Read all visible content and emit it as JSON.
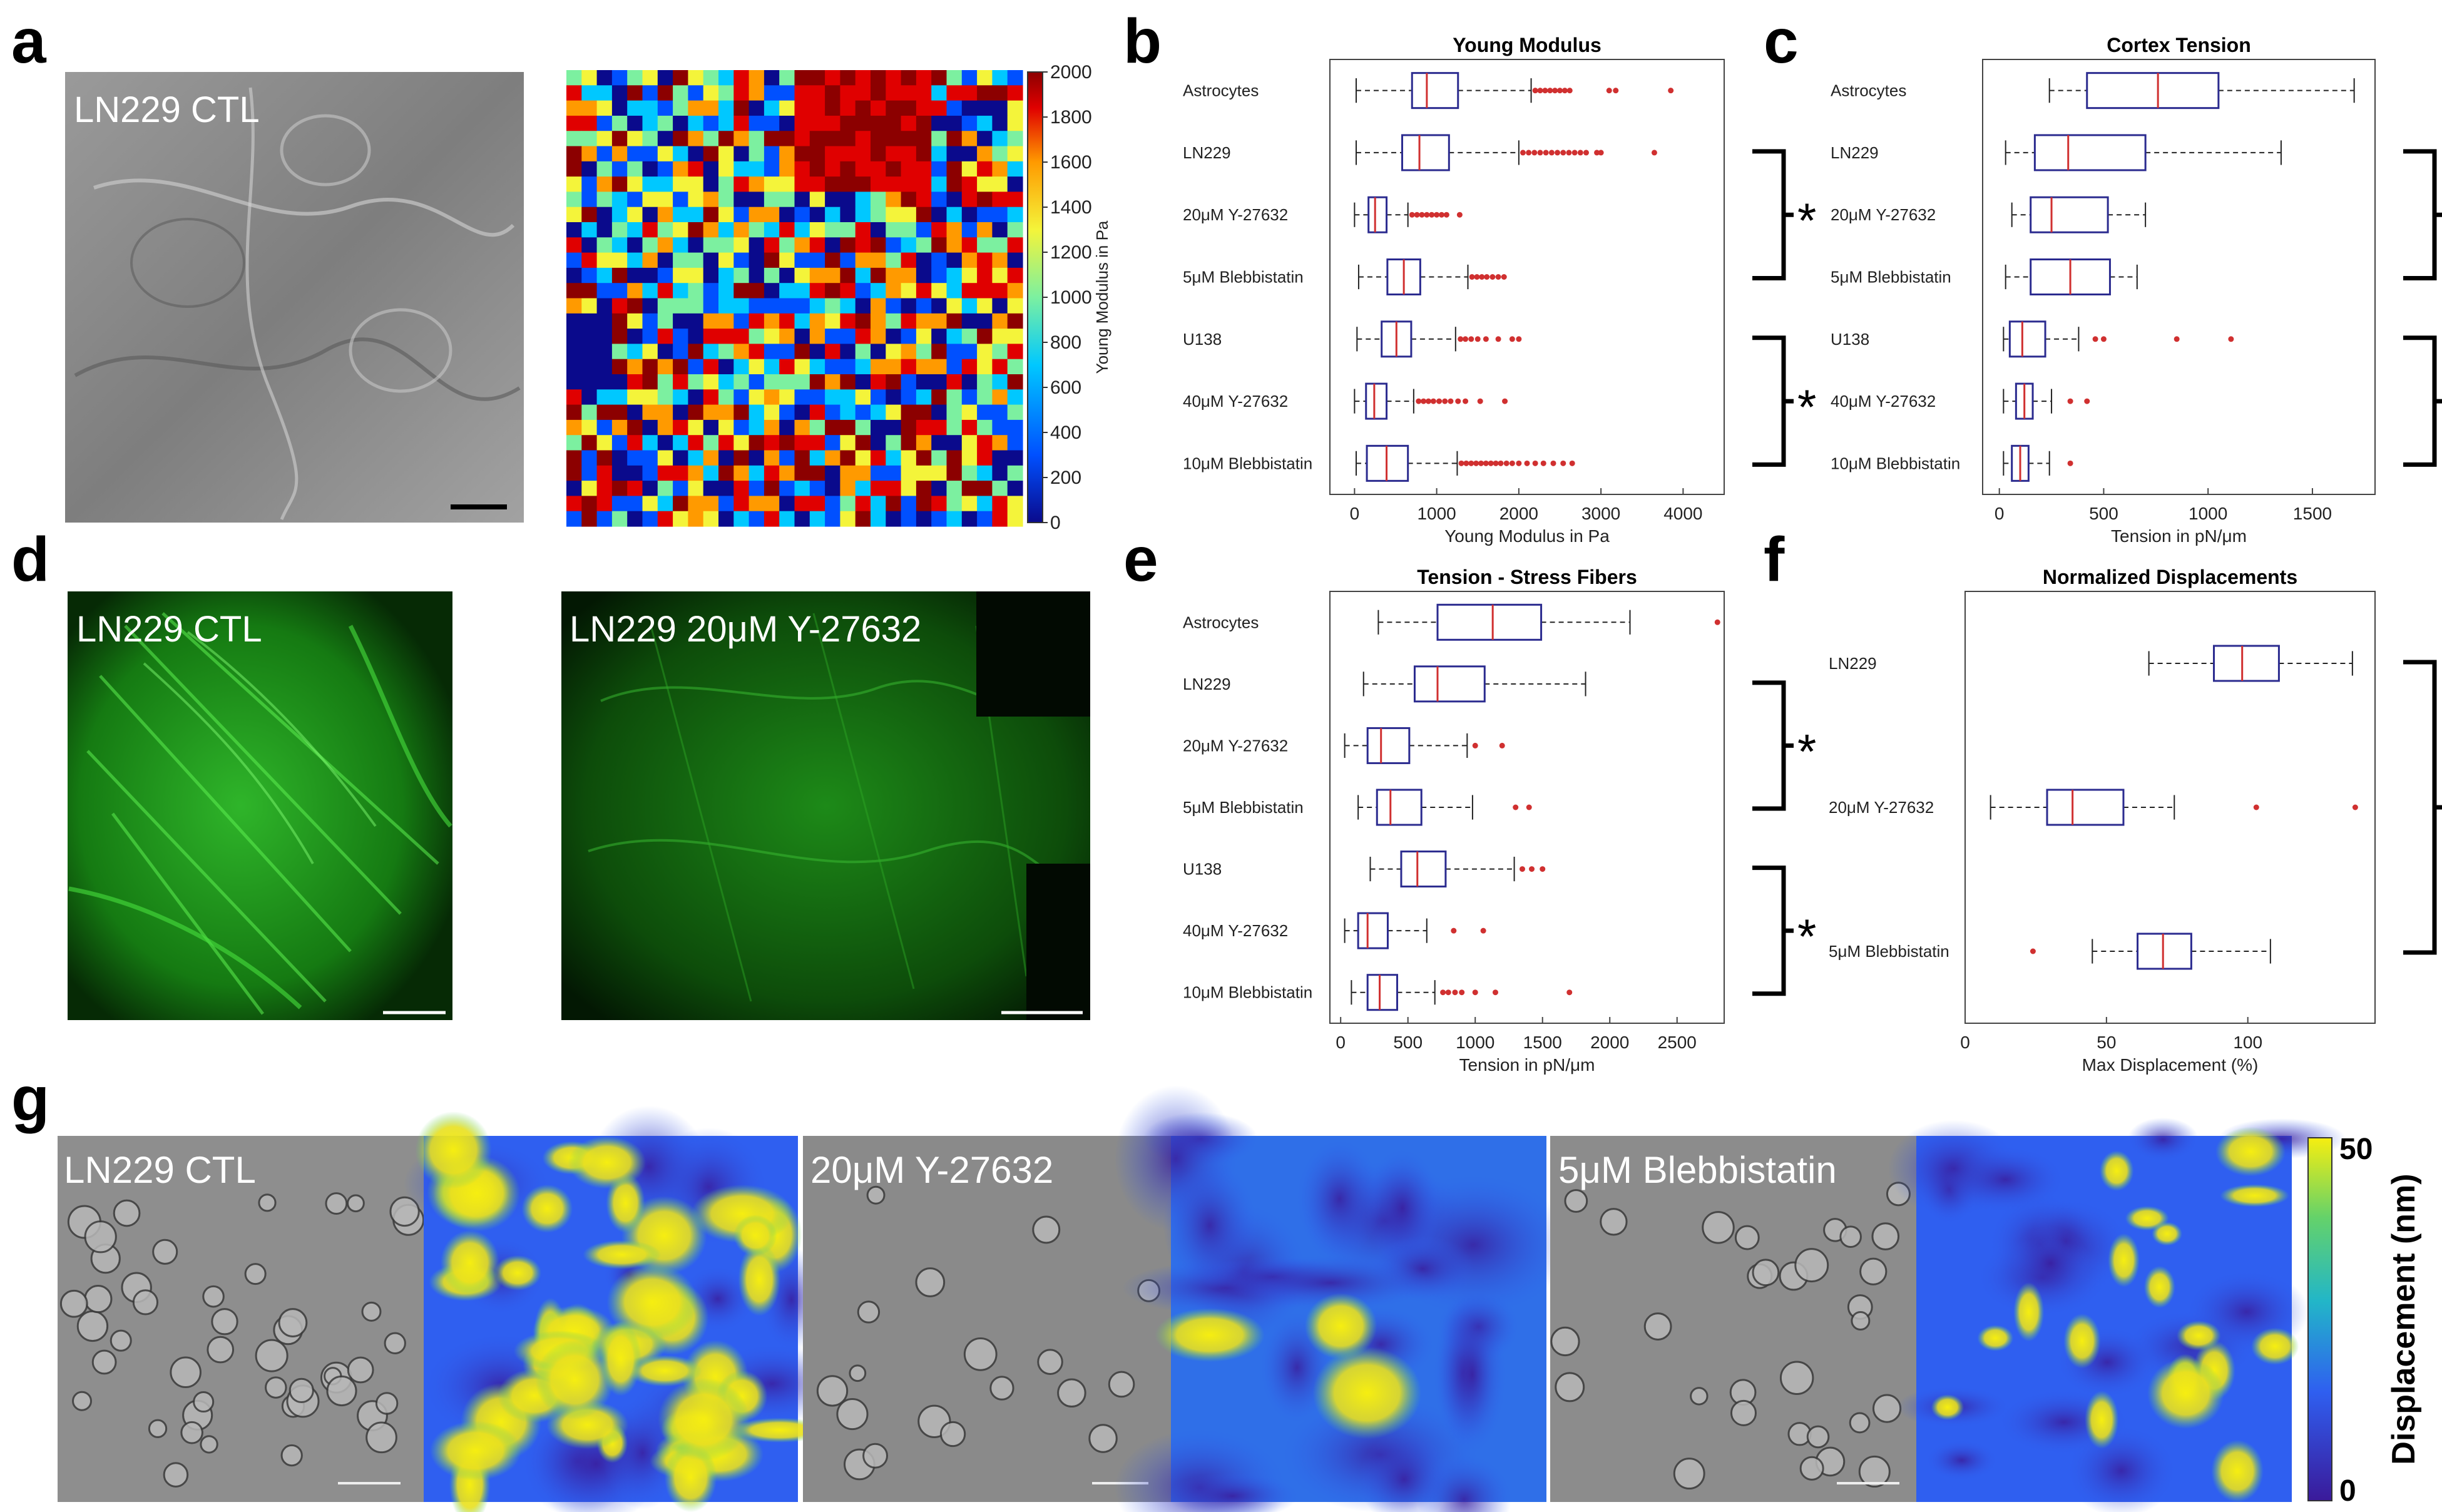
{
  "panel_letters": {
    "a": "a",
    "b": "b",
    "c": "c",
    "d": "d",
    "e": "e",
    "f": "f",
    "g": "g"
  },
  "colors": {
    "box": "#2b2b8f",
    "median": "#d03030",
    "outlier": "#d03030",
    "fluor": "#34d32c",
    "afm_scale": [
      "#0a0a8c",
      "#0050ff",
      "#00c8ff",
      "#7cf0a0",
      "#f4f43a",
      "#ff9a00",
      "#e00000",
      "#8c0000"
    ],
    "disp_scale": [
      "#3a1a9a",
      "#2f5ff0",
      "#22b6c8",
      "#64d26a",
      "#f6ee10"
    ]
  },
  "micrographs": {
    "a_label": "LN229 CTL",
    "d_left_label": "LN229 CTL",
    "d_right_label": "LN229 20μM Y-27632",
    "g_labels": [
      "LN229 CTL",
      "20μM Y-27632",
      "5μM Blebbistatin"
    ]
  },
  "colorbars": {
    "afm": {
      "ticks": [
        "2000",
        "1800",
        "1600",
        "1400",
        "1200",
        "1000",
        "800",
        "600",
        "400",
        "200",
        "0"
      ],
      "label": "Young Modulus in Pa"
    },
    "displacement": {
      "ticks": [
        "50",
        "0"
      ],
      "label": "Displacement (nm)"
    }
  },
  "significance": "*",
  "chart_data": [
    {
      "id": "b",
      "type": "box",
      "title": "Young Modulus",
      "xlabel": "Young Modulus in Pa",
      "xlim": [
        -300,
        4500
      ],
      "xticks": [
        0,
        1000,
        2000,
        3000,
        4000
      ],
      "categories": [
        "Astrocytes",
        "LN229",
        "20μM Y-27632",
        "5μM Blebbistatin",
        "U138",
        "40μM Y-27632",
        "10μM Blebbistatin"
      ],
      "stats": [
        {
          "wlo": 20,
          "q1": 700,
          "med": 880,
          "q3": 1260,
          "whi": 2150,
          "outliers": [
            2200,
            2260,
            2320,
            2380,
            2440,
            2500,
            2560,
            2620,
            3100,
            3180,
            3850
          ]
        },
        {
          "wlo": 20,
          "q1": 580,
          "med": 790,
          "q3": 1150,
          "whi": 2000,
          "outliers": [
            2050,
            2120,
            2190,
            2260,
            2330,
            2400,
            2470,
            2540,
            2610,
            2680,
            2750,
            2820,
            2950,
            3000,
            3650
          ]
        },
        {
          "wlo": 0,
          "q1": 170,
          "med": 250,
          "q3": 390,
          "whi": 650,
          "outliers": [
            700,
            760,
            820,
            880,
            940,
            1000,
            1060,
            1120,
            1280
          ]
        },
        {
          "wlo": 50,
          "q1": 400,
          "med": 600,
          "q3": 800,
          "whi": 1380,
          "outliers": [
            1430,
            1490,
            1550,
            1610,
            1680,
            1750,
            1820
          ]
        },
        {
          "wlo": 30,
          "q1": 330,
          "med": 510,
          "q3": 690,
          "whi": 1230,
          "outliers": [
            1290,
            1350,
            1420,
            1500,
            1600,
            1750,
            1920,
            2000
          ]
        },
        {
          "wlo": 0,
          "q1": 140,
          "med": 240,
          "q3": 390,
          "whi": 720,
          "outliers": [
            780,
            840,
            900,
            960,
            1030,
            1100,
            1170,
            1260,
            1350,
            1530,
            1830
          ]
        },
        {
          "wlo": 20,
          "q1": 150,
          "med": 390,
          "q3": 650,
          "whi": 1250,
          "outliers": [
            1300,
            1360,
            1420,
            1480,
            1540,
            1600,
            1660,
            1720,
            1780,
            1850,
            1920,
            2000,
            2100,
            2200,
            2300,
            2420,
            2540,
            2650
          ]
        }
      ],
      "brackets": [
        [
          1,
          3
        ],
        [
          4,
          6
        ]
      ]
    },
    {
      "id": "c",
      "type": "box",
      "title": "Cortex Tension",
      "xlabel": "Tension in pN/μm",
      "xlim": [
        -80,
        1800
      ],
      "xticks": [
        0,
        500,
        1000,
        1500
      ],
      "categories": [
        "Astrocytes",
        "LN229",
        "20μM Y-27632",
        "5μM Blebbistatin",
        "U138",
        "40μM Y-27632",
        "10μM Blebbistatin"
      ],
      "stats": [
        {
          "wlo": 240,
          "q1": 420,
          "med": 760,
          "q3": 1050,
          "whi": 1700,
          "outliers": []
        },
        {
          "wlo": 30,
          "q1": 170,
          "med": 330,
          "q3": 700,
          "whi": 1350,
          "outliers": []
        },
        {
          "wlo": 60,
          "q1": 150,
          "med": 250,
          "q3": 520,
          "whi": 700,
          "outliers": []
        },
        {
          "wlo": 30,
          "q1": 150,
          "med": 340,
          "q3": 530,
          "whi": 660,
          "outliers": []
        },
        {
          "wlo": 20,
          "q1": 50,
          "med": 110,
          "q3": 220,
          "whi": 380,
          "outliers": [
            460,
            500,
            850,
            1110
          ]
        },
        {
          "wlo": 20,
          "q1": 80,
          "med": 120,
          "q3": 160,
          "whi": 250,
          "outliers": [
            340,
            420
          ]
        },
        {
          "wlo": 20,
          "q1": 60,
          "med": 100,
          "q3": 140,
          "whi": 240,
          "outliers": [
            340
          ]
        }
      ],
      "brackets": [
        [
          1,
          3
        ],
        [
          4,
          6
        ]
      ]
    },
    {
      "id": "e",
      "type": "box",
      "title": "Tension - Stress Fibers",
      "xlabel": "Tension in pN/μm",
      "xlim": [
        -80,
        2850
      ],
      "xticks": [
        0,
        500,
        1000,
        1500,
        2000,
        2500
      ],
      "xtick_labels": [
        "0",
        "500",
        "1000",
        "1500",
        "2000",
        "2500"
      ],
      "categories": [
        "Astrocytes",
        "LN229",
        "20μM Y-27632",
        "5μM Blebbistatin",
        "U138",
        "40μM Y-27632",
        "10μM Blebbistatin"
      ],
      "stats": [
        {
          "wlo": 280,
          "q1": 720,
          "med": 1130,
          "q3": 1490,
          "whi": 2150,
          "outliers": [
            2800
          ]
        },
        {
          "wlo": 170,
          "q1": 550,
          "med": 720,
          "q3": 1070,
          "whi": 1820,
          "outliers": []
        },
        {
          "wlo": 30,
          "q1": 200,
          "med": 300,
          "q3": 510,
          "whi": 940,
          "outliers": [
            1000,
            1200
          ]
        },
        {
          "wlo": 130,
          "q1": 270,
          "med": 370,
          "q3": 600,
          "whi": 980,
          "outliers": [
            1300,
            1400
          ]
        },
        {
          "wlo": 220,
          "q1": 450,
          "med": 570,
          "q3": 780,
          "whi": 1290,
          "outliers": [
            1350,
            1420,
            1500
          ]
        },
        {
          "wlo": 30,
          "q1": 130,
          "med": 200,
          "q3": 350,
          "whi": 640,
          "outliers": [
            840,
            1060
          ]
        },
        {
          "wlo": 80,
          "q1": 200,
          "med": 290,
          "q3": 420,
          "whi": 700,
          "outliers": [
            760,
            800,
            850,
            900,
            1000,
            1150,
            1700
          ]
        }
      ],
      "brackets": [
        [
          1,
          3
        ],
        [
          4,
          6
        ]
      ]
    },
    {
      "id": "f",
      "type": "box",
      "title": "Normalized Displacements",
      "xlabel": "Max Displacement (%)",
      "xlim": [
        0,
        145
      ],
      "xticks": [
        0,
        50,
        100
      ],
      "categories": [
        "LN229",
        "20μM Y-27632",
        "5μM Blebbistatin"
      ],
      "stats": [
        {
          "wlo": 65,
          "q1": 88,
          "med": 98,
          "q3": 111,
          "whi": 137,
          "outliers": []
        },
        {
          "wlo": 9,
          "q1": 29,
          "med": 38,
          "q3": 56,
          "whi": 74,
          "outliers": [
            103,
            138
          ]
        },
        {
          "wlo": 45,
          "q1": 61,
          "med": 70,
          "q3": 80,
          "whi": 108,
          "outliers": [
            24
          ]
        }
      ],
      "brackets": [
        [
          0,
          2
        ]
      ]
    }
  ]
}
